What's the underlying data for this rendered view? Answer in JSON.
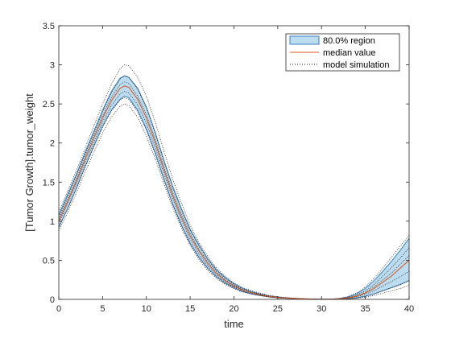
{
  "chart_data": {
    "type": "line",
    "xlabel": "time",
    "ylabel": "[Tumor Growth].tumor_weight",
    "xlim": [
      0,
      40
    ],
    "ylim": [
      0,
      3.5
    ],
    "xticks": [
      "0",
      "5",
      "10",
      "15",
      "20",
      "25",
      "30",
      "35",
      "40"
    ],
    "yticks": [
      "0",
      "0.5",
      "1",
      "1.5",
      "2",
      "2.5",
      "3",
      "3.5"
    ],
    "grid": false,
    "legend_position": "top-right",
    "legend": [
      {
        "label": "80.0% region",
        "kind": "patch"
      },
      {
        "label": "median value",
        "kind": "line"
      },
      {
        "label": "model simulation",
        "kind": "dotted"
      }
    ],
    "colors": {
      "band_fill": "#bcdcef",
      "band_edge": "#3a7fc0",
      "median": "#d95319",
      "simulation": "#262626",
      "axis": "#262626"
    },
    "x": [
      0,
      1,
      2,
      3,
      4,
      5,
      6,
      7,
      7.5,
      8,
      9,
      10,
      11,
      12,
      13,
      14,
      15,
      16,
      17,
      18,
      19,
      20,
      21,
      22,
      23,
      24,
      25,
      26,
      27,
      28,
      29,
      30,
      31,
      32,
      33,
      34,
      35,
      36,
      37,
      38,
      39,
      40
    ],
    "band_upper": [
      1.08,
      1.34,
      1.6,
      1.88,
      2.15,
      2.42,
      2.66,
      2.83,
      2.86,
      2.84,
      2.7,
      2.46,
      2.14,
      1.78,
      1.45,
      1.16,
      0.9,
      0.7,
      0.52,
      0.38,
      0.28,
      0.2,
      0.14,
      0.1,
      0.07,
      0.045,
      0.03,
      0.02,
      0.013,
      0.008,
      0.004,
      0.002,
      0.002,
      0.01,
      0.03,
      0.07,
      0.14,
      0.24,
      0.36,
      0.49,
      0.63,
      0.78
    ],
    "band_lower": [
      0.92,
      1.16,
      1.42,
      1.7,
      1.96,
      2.22,
      2.42,
      2.56,
      2.6,
      2.58,
      2.42,
      2.18,
      1.88,
      1.54,
      1.22,
      0.95,
      0.72,
      0.54,
      0.4,
      0.29,
      0.21,
      0.15,
      0.1,
      0.07,
      0.05,
      0.032,
      0.02,
      0.013,
      0.008,
      0.005,
      0.002,
      0.001,
      0.001,
      0.003,
      0.008,
      0.02,
      0.04,
      0.07,
      0.11,
      0.15,
      0.19,
      0.24
    ],
    "median": [
      1.0,
      1.25,
      1.51,
      1.79,
      2.06,
      2.32,
      2.54,
      2.7,
      2.73,
      2.71,
      2.56,
      2.32,
      2.01,
      1.66,
      1.33,
      1.05,
      0.81,
      0.62,
      0.46,
      0.33,
      0.24,
      0.17,
      0.12,
      0.085,
      0.06,
      0.038,
      0.025,
      0.016,
      0.01,
      0.006,
      0.003,
      0.0015,
      0.0015,
      0.006,
      0.018,
      0.04,
      0.08,
      0.14,
      0.22,
      0.3,
      0.4,
      0.5
    ],
    "series": [
      {
        "values": [
          1.12,
          1.38,
          1.65,
          1.93,
          2.22,
          2.5,
          2.75,
          2.95,
          3.0,
          2.99,
          2.84,
          2.6,
          2.27,
          1.9,
          1.54,
          1.23,
          0.95,
          0.73,
          0.55,
          0.4,
          0.3,
          0.21,
          0.15,
          0.11,
          0.08,
          0.05,
          0.035,
          0.023,
          0.015,
          0.009,
          0.005,
          0.002,
          0.002,
          0.012,
          0.035,
          0.08,
          0.16,
          0.27,
          0.4,
          0.54,
          0.68,
          0.82
        ]
      },
      {
        "values": [
          1.06,
          1.32,
          1.58,
          1.86,
          2.13,
          2.4,
          2.64,
          2.82,
          2.86,
          2.84,
          2.69,
          2.45,
          2.13,
          1.77,
          1.43,
          1.14,
          0.88,
          0.68,
          0.51,
          0.37,
          0.27,
          0.19,
          0.13,
          0.095,
          0.068,
          0.043,
          0.029,
          0.019,
          0.012,
          0.007,
          0.004,
          0.002,
          0.002,
          0.008,
          0.025,
          0.055,
          0.11,
          0.19,
          0.3,
          0.41,
          0.53,
          0.66
        ]
      },
      {
        "values": [
          1.03,
          1.28,
          1.54,
          1.82,
          2.09,
          2.35,
          2.58,
          2.75,
          2.78,
          2.76,
          2.6,
          2.36,
          2.05,
          1.7,
          1.37,
          1.09,
          0.84,
          0.64,
          0.48,
          0.35,
          0.25,
          0.18,
          0.125,
          0.09,
          0.064,
          0.04,
          0.027,
          0.017,
          0.011,
          0.006,
          0.003,
          0.0015,
          0.0015,
          0.006,
          0.02,
          0.045,
          0.09,
          0.16,
          0.25,
          0.34,
          0.45,
          0.56
        ]
      },
      {
        "values": [
          0.97,
          1.22,
          1.48,
          1.75,
          2.01,
          2.27,
          2.48,
          2.63,
          2.66,
          2.64,
          2.49,
          2.25,
          1.95,
          1.61,
          1.29,
          1.01,
          0.77,
          0.58,
          0.43,
          0.31,
          0.22,
          0.16,
          0.11,
          0.08,
          0.056,
          0.035,
          0.023,
          0.015,
          0.009,
          0.005,
          0.0025,
          0.0012,
          0.0012,
          0.005,
          0.015,
          0.034,
          0.065,
          0.11,
          0.17,
          0.23,
          0.29,
          0.36
        ]
      },
      {
        "values": [
          0.92,
          1.16,
          1.41,
          1.69,
          1.95,
          2.2,
          2.41,
          2.55,
          2.58,
          2.56,
          2.4,
          2.16,
          1.86,
          1.53,
          1.21,
          0.94,
          0.71,
          0.53,
          0.39,
          0.28,
          0.2,
          0.145,
          0.1,
          0.072,
          0.05,
          0.032,
          0.02,
          0.013,
          0.008,
          0.0045,
          0.002,
          0.001,
          0.001,
          0.003,
          0.008,
          0.02,
          0.04,
          0.07,
          0.11,
          0.15,
          0.19,
          0.24
        ]
      },
      {
        "values": [
          0.88,
          1.11,
          1.36,
          1.63,
          1.88,
          2.13,
          2.33,
          2.47,
          2.5,
          2.48,
          2.33,
          2.09,
          1.8,
          1.48,
          1.17,
          0.91,
          0.69,
          0.51,
          0.37,
          0.27,
          0.19,
          0.135,
          0.095,
          0.068,
          0.047,
          0.03,
          0.019,
          0.012,
          0.007,
          0.004,
          0.002,
          0.001,
          0.001,
          0.002,
          0.006,
          0.014,
          0.028,
          0.05,
          0.08,
          0.11,
          0.14,
          0.18
        ]
      }
    ]
  }
}
